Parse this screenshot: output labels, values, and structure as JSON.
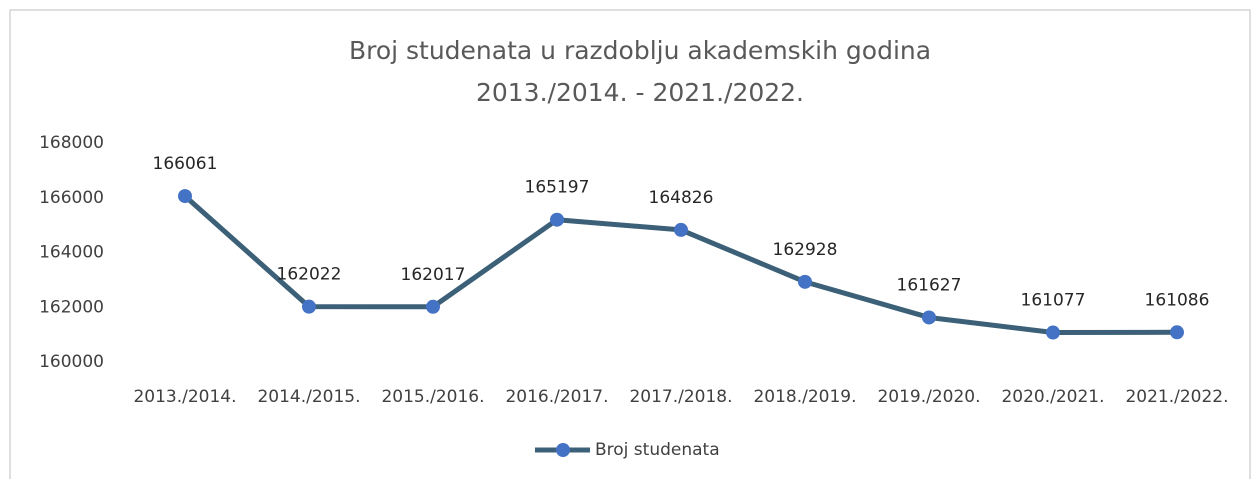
{
  "chart_data": {
    "type": "line",
    "title": [
      "Broj studenata u razdoblju akademskih godina",
      "2013./2014. - 2021./2022."
    ],
    "categories": [
      "2013./2014.",
      "2014./2015.",
      "2015./2016.",
      "2016./2017.",
      "2017./2018.",
      "2018./2019.",
      "2019./2020.",
      "2020./2021.",
      "2021./2022."
    ],
    "series": [
      {
        "name": "Broj studenata",
        "color": "#3b6078",
        "marker_color": "#4472c4",
        "values": [
          166061,
          162022,
          162017,
          165197,
          164826,
          162928,
          161627,
          161077,
          161086
        ]
      }
    ],
    "ylim": [
      160000,
      168000
    ],
    "yticks": [
      160000,
      162000,
      164000,
      166000,
      168000
    ],
    "grid": false,
    "legend": "bottom"
  }
}
